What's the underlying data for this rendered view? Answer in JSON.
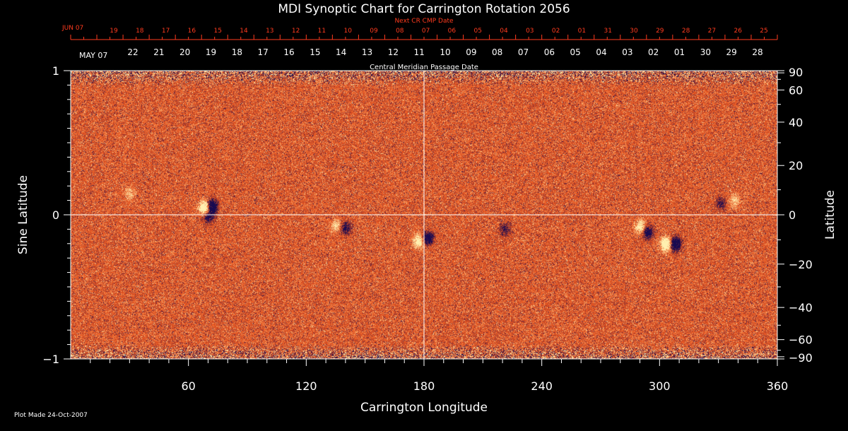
{
  "chart_data": {
    "type": "heatmap",
    "title": "MDI Synoptic Chart for Carrington Rotation 2056",
    "xlabel": "Carrington Longitude",
    "ylabel": "Sine Latitude",
    "y2label": "Latitude",
    "xlim": [
      0,
      360
    ],
    "ylim": [
      -1,
      1
    ],
    "x_ticks": [
      60,
      120,
      180,
      240,
      300,
      360
    ],
    "y_ticks": [
      {
        "value": 1,
        "label": "1"
      },
      {
        "value": 0,
        "label": "0"
      },
      {
        "value": -1,
        "label": "−1"
      }
    ],
    "lat_ticks": [
      {
        "value": 90,
        "label": "90"
      },
      {
        "value": 60,
        "label": "60"
      },
      {
        "value": 40,
        "label": "40"
      },
      {
        "value": 20,
        "label": "20"
      },
      {
        "value": 0,
        "label": "0"
      },
      {
        "value": -20,
        "label": "−20"
      },
      {
        "value": -40,
        "label": "−40"
      },
      {
        "value": -60,
        "label": "−60"
      },
      {
        "value": -90,
        "label": "−90"
      }
    ],
    "grid_lines": {
      "longitude": 180,
      "sine_latitude": 0
    },
    "colors": {
      "background": "#000000",
      "field_base": "#e8541e",
      "positive": "#fff0b0",
      "negative": "#180a50",
      "next_cr_axis": "#ff3b1e",
      "axis": "#ffffff"
    },
    "cmp_axis_label": "Central Meridian Passage Date",
    "cmp_month_label": "MAY 07",
    "cmp_dates": [
      "22",
      "21",
      "20",
      "19",
      "18",
      "17",
      "16",
      "15",
      "14",
      "13",
      "12",
      "11",
      "10",
      "09",
      "08",
      "07",
      "06",
      "05",
      "04",
      "03",
      "02",
      "01",
      "30",
      "29",
      "28"
    ],
    "next_cr_axis_label": "Next CR CMP Date",
    "next_cr_month_label": "JUN 07",
    "next_cr_dates": [
      "19",
      "18",
      "17",
      "16",
      "15",
      "14",
      "13",
      "12",
      "11",
      "10",
      "09",
      "08",
      "07",
      "06",
      "05",
      "04",
      "03",
      "02",
      "01",
      "31",
      "30",
      "29",
      "28",
      "27",
      "26",
      "25"
    ],
    "active_regions": [
      {
        "lon": 68,
        "sinlat": 0.05,
        "polarity": "positive",
        "strength": 1.0
      },
      {
        "lon": 72,
        "sinlat": 0.06,
        "polarity": "negative",
        "strength": 1.0
      },
      {
        "lon": 70,
        "sinlat": -0.01,
        "polarity": "negative",
        "strength": 0.6
      },
      {
        "lon": 140,
        "sinlat": -0.09,
        "polarity": "negative",
        "strength": 0.5
      },
      {
        "lon": 135,
        "sinlat": -0.07,
        "polarity": "positive",
        "strength": 0.4
      },
      {
        "lon": 177,
        "sinlat": -0.18,
        "polarity": "positive",
        "strength": 0.7
      },
      {
        "lon": 182,
        "sinlat": -0.16,
        "polarity": "negative",
        "strength": 0.8
      },
      {
        "lon": 221,
        "sinlat": -0.1,
        "polarity": "negative",
        "strength": 0.4
      },
      {
        "lon": 290,
        "sinlat": -0.08,
        "polarity": "positive",
        "strength": 0.6
      },
      {
        "lon": 294,
        "sinlat": -0.12,
        "polarity": "negative",
        "strength": 0.7
      },
      {
        "lon": 303,
        "sinlat": -0.2,
        "polarity": "positive",
        "strength": 1.0
      },
      {
        "lon": 308,
        "sinlat": -0.2,
        "polarity": "negative",
        "strength": 1.0
      },
      {
        "lon": 338,
        "sinlat": 0.1,
        "polarity": "positive",
        "strength": 0.4
      },
      {
        "lon": 331,
        "sinlat": 0.08,
        "polarity": "negative",
        "strength": 0.4
      },
      {
        "lon": 30,
        "sinlat": 0.15,
        "polarity": "positive",
        "strength": 0.3
      }
    ]
  },
  "footer": {
    "plot_made": "Plot Made 24-Oct-2007"
  }
}
